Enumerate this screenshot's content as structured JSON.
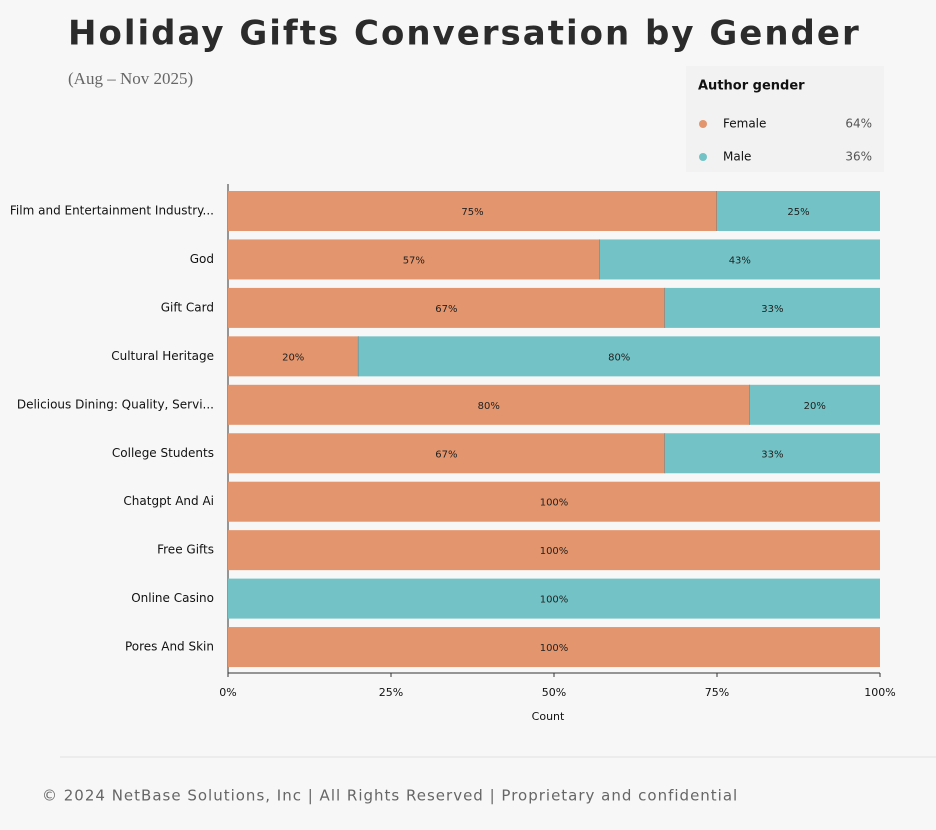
{
  "chart_data": {
    "type": "stacked_barh",
    "title": "Holiday Gifts Conversation by Gender",
    "subtitle": "(Aug – Nov 2025)",
    "xlabel": "Count",
    "legend_title": "Author gender",
    "categories": [
      "Film and Entertainment Industry...",
      "God",
      "Gift Card",
      "Cultural Heritage",
      "Delicious Dining: Quality, Servi...",
      "College Students",
      "Chatgpt And Ai",
      "Free Gifts",
      "Online Casino",
      "Pores And Skin"
    ],
    "series": [
      {
        "name": "Female",
        "color": "#e3956d",
        "share": 64,
        "share_label": "64%",
        "values": [
          75,
          57,
          67,
          20,
          80,
          67,
          100,
          100,
          0,
          100
        ],
        "value_labels": [
          "75%",
          "57%",
          "67%",
          "20%",
          "80%",
          "67%",
          "100%",
          "100%",
          null,
          "100%"
        ]
      },
      {
        "name": "Male",
        "color": "#73c3c6",
        "share": 36,
        "share_label": "36%",
        "values": [
          25,
          43,
          33,
          80,
          20,
          33,
          0,
          0,
          100,
          0
        ],
        "value_labels": [
          "25%",
          "43%",
          "33%",
          "80%",
          "20%",
          "33%",
          null,
          null,
          "100%",
          null
        ]
      }
    ],
    "xlim": [
      0,
      100
    ],
    "xticks": [
      {
        "value": 0,
        "label": "0%"
      },
      {
        "value": 25,
        "label": "25%"
      },
      {
        "value": 50,
        "label": "50%"
      },
      {
        "value": 75,
        "label": "75%"
      },
      {
        "value": 100,
        "label": "100%"
      }
    ],
    "footer": "© 2024 NetBase Solutions, Inc | All Rights Reserved | Proprietary and confidential"
  }
}
